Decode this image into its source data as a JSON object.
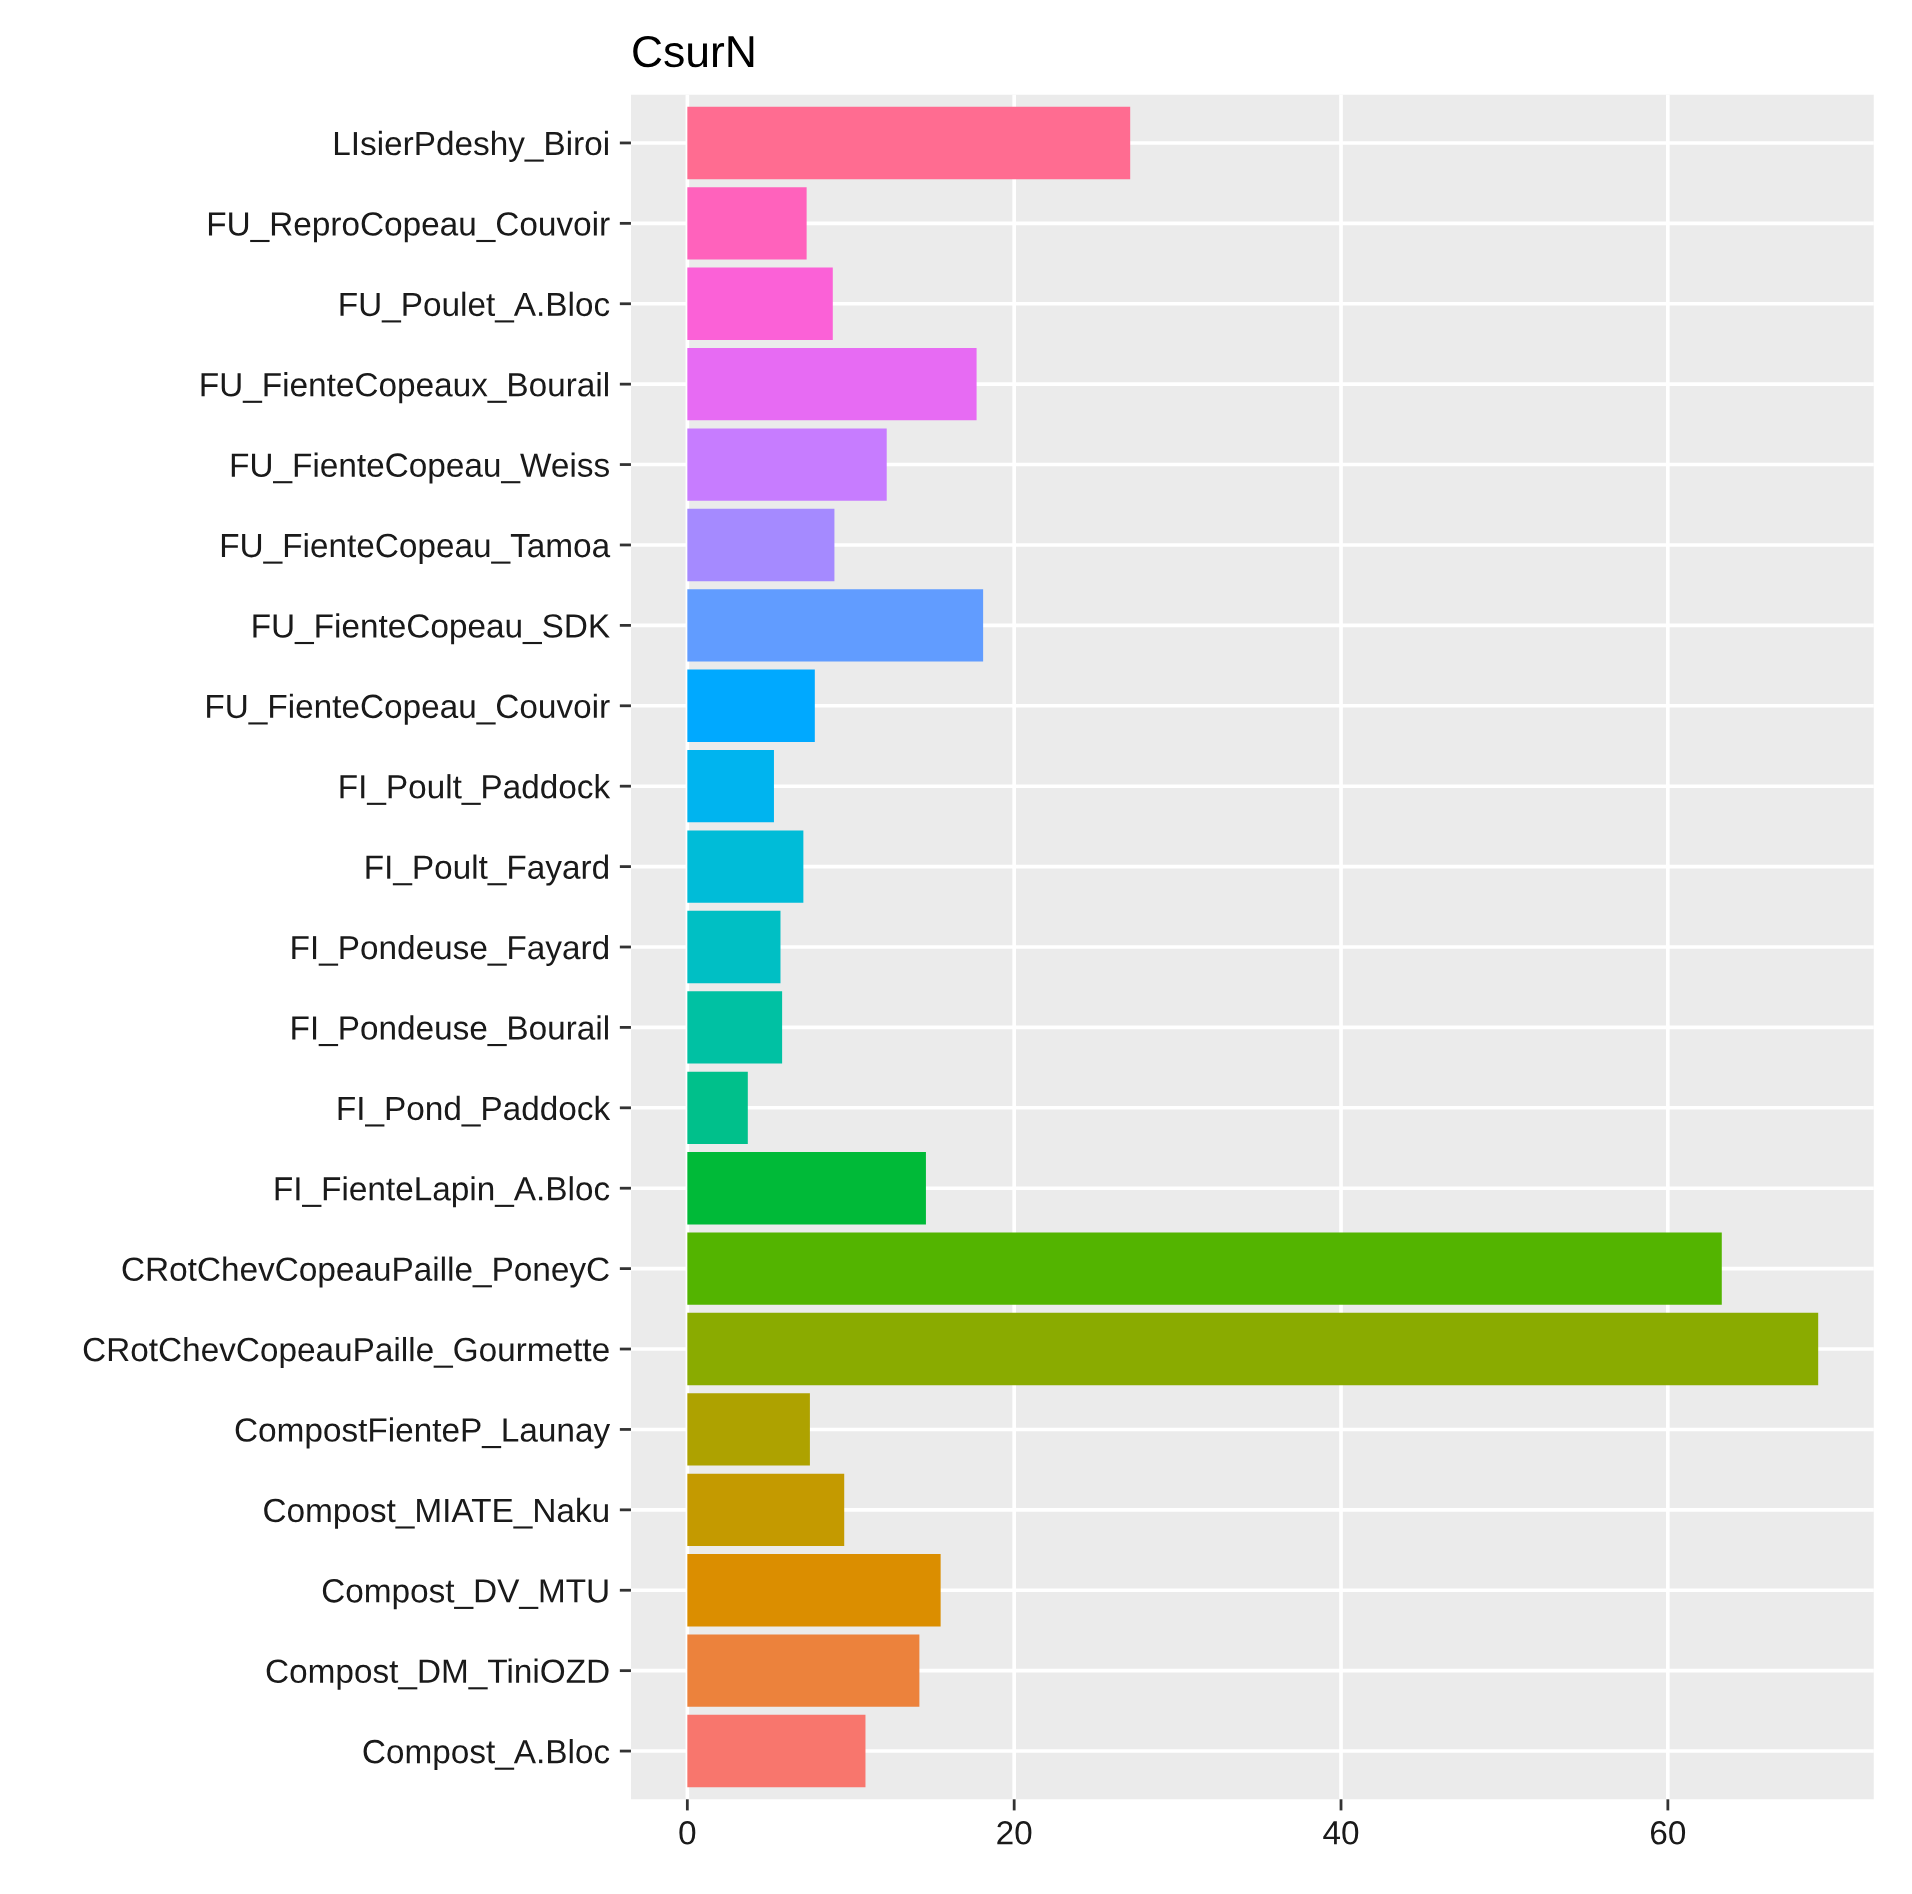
{
  "chart_data": {
    "type": "bar",
    "orientation": "horizontal",
    "title": "CsurN",
    "categories": [
      "LIsierPdeshy_Biroi",
      "FU_ReproCopeau_Couvoir",
      "FU_Poulet_A.Bloc",
      "FU_FienteCopeaux_Bourail",
      "FU_FienteCopeau_Weiss",
      "FU_FienteCopeau_Tamoa",
      "FU_FienteCopeau_SDK",
      "FU_FienteCopeau_Couvoir",
      "FI_Poult_Paddock",
      "FI_Poult_Fayard",
      "FI_Pondeuse_Fayard",
      "FI_Pondeuse_Bourail",
      "FI_Pond_Paddock",
      "FI_FienteLapin_A.Bloc",
      "CRotChevCopeauPaille_PoneyC",
      "CRotChevCopeauPaille_Gourmette",
      "CompostFienteP_Launay",
      "Compost_MIATE_Naku",
      "Compost_DV_MTU",
      "Compost_DM_TiniOZD",
      "Compost_A.Bloc"
    ],
    "values": [
      27.1,
      7.3,
      8.9,
      17.7,
      12.2,
      9.0,
      18.1,
      7.8,
      5.3,
      7.1,
      5.7,
      5.8,
      3.7,
      14.6,
      63.3,
      69.2,
      7.5,
      9.6,
      15.5,
      14.2,
      10.9
    ],
    "colors": [
      "#FF6C91",
      "#FF62BC",
      "#FB61D7",
      "#E76BF3",
      "#C77CFF",
      "#A58AFF",
      "#619CFF",
      "#00A9FF",
      "#00B4EF",
      "#00BCD8",
      "#00BFC4",
      "#00C1A3",
      "#00C08B",
      "#00BA38",
      "#53B400",
      "#8AAB00",
      "#AEA200",
      "#C49A00",
      "#DB8E00",
      "#EC823C",
      "#F8766D"
    ],
    "xlim": [
      -3.45,
      72.6
    ],
    "xticks": [
      0,
      20,
      40,
      60
    ],
    "grid": true
  }
}
